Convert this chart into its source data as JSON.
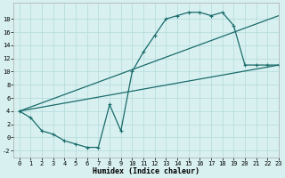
{
  "bg_color": "#d8f0f0",
  "grid_color": "#b8dede",
  "line_color": "#1a6b6b",
  "line1_x": [
    0,
    1,
    2,
    3,
    4,
    5,
    6,
    7,
    8,
    9,
    10,
    11,
    12,
    13,
    14,
    15,
    16,
    17,
    18,
    19,
    20,
    21,
    22,
    23
  ],
  "line1_y": [
    4,
    3,
    1,
    0.5,
    -0.5,
    -1,
    -1.5,
    -1.5,
    5,
    1,
    10,
    13,
    15.5,
    18,
    18.5,
    19,
    19,
    18.5,
    19,
    17,
    11,
    11,
    11,
    11
  ],
  "line2_x": [
    0,
    23
  ],
  "line2_y": [
    4,
    11
  ],
  "line3_x": [
    0,
    23
  ],
  "line3_y": [
    4,
    18.5
  ],
  "xlabel": "Humidex (Indice chaleur)",
  "xlim": [
    -0.5,
    23
  ],
  "ylim": [
    -3,
    20.5
  ],
  "xticks": [
    0,
    1,
    2,
    3,
    4,
    5,
    6,
    7,
    8,
    9,
    10,
    11,
    12,
    13,
    14,
    15,
    16,
    17,
    18,
    19,
    20,
    21,
    22,
    23
  ],
  "yticks": [
    -2,
    0,
    2,
    4,
    6,
    8,
    10,
    12,
    14,
    16,
    18
  ],
  "tick_labelsize": 5.0,
  "xlabel_fontsize": 6.0
}
